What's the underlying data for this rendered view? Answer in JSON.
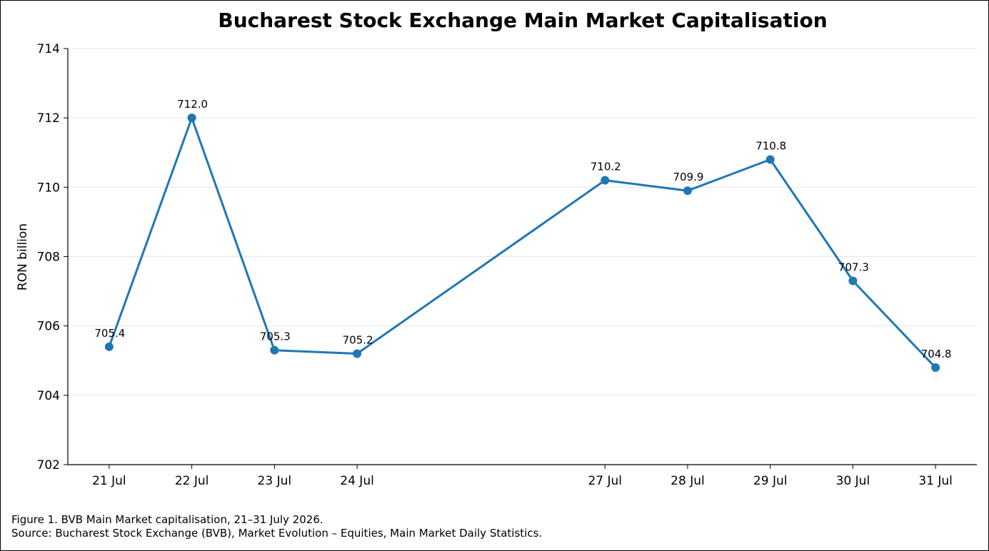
{
  "chart_data": {
    "type": "line",
    "title": "Bucharest Stock Exchange Main Market Capitalisation",
    "xlabel": "",
    "ylabel": "RON billion",
    "ylim": [
      702,
      714
    ],
    "yticks": [
      702,
      704,
      706,
      708,
      710,
      712,
      714
    ],
    "grid": "horizontal",
    "x_day_of_month": [
      21,
      22,
      23,
      24,
      27,
      28,
      29,
      30,
      31
    ],
    "categories": [
      "21 Jul",
      "22 Jul",
      "23 Jul",
      "24 Jul",
      "27 Jul",
      "28 Jul",
      "29 Jul",
      "30 Jul",
      "31 Jul"
    ],
    "series": [
      {
        "values": [
          705.4,
          712.0,
          705.3,
          705.2,
          710.2,
          709.9,
          710.8,
          707.3,
          704.8
        ],
        "labels": [
          "705.4",
          "712.0",
          "705.3",
          "705.2",
          "710.2",
          "709.9",
          "710.8",
          "707.3",
          "704.8"
        ],
        "color": "#1f77b4"
      }
    ]
  },
  "caption": {
    "line1": "Figure 1. BVB Main Market capitalisation, 21–31 July 2026.",
    "line2": "Source: Bucharest Stock Exchange (BVB), Market Evolution – Equities, Main Market Daily Statistics."
  }
}
